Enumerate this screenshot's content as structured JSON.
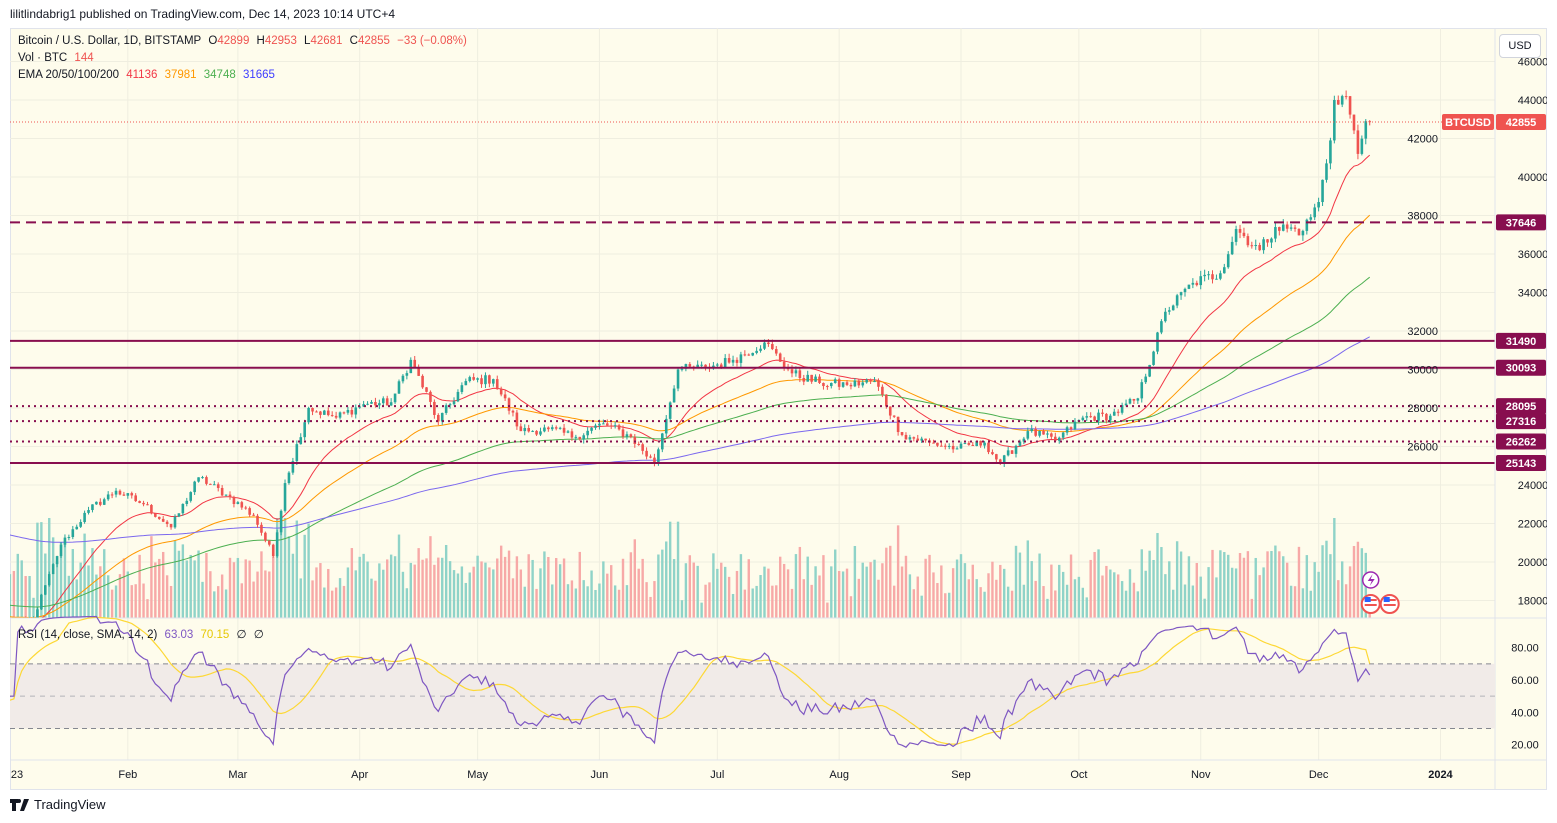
{
  "header": {
    "published": "lilitlindabrig1 published on TradingView.com, Dec 14, 2023 10:14 UTC+4"
  },
  "legend": {
    "symbol": "Bitcoin / U.S. Dollar, 1D, BITSTAMP",
    "o_label": "O",
    "open": "42899",
    "h_label": "H",
    "high": "42953",
    "l_label": "L",
    "low": "42681",
    "c_label": "C",
    "close": "42855",
    "change": "−33 (−0.08%)",
    "vol_label": "Vol · BTC",
    "vol_value": "144",
    "ema_label": "EMA 20/50/100/200",
    "ema20": "41136",
    "ema50": "37981",
    "ema100": "34748",
    "ema200": "31665",
    "rsi_label": "RSI (14, close, SMA, 14, 2)",
    "rsi_value": "63.03",
    "rsi_sma": "70.15",
    "rsi_na1": "∅",
    "rsi_na2": "∅"
  },
  "currency_button": "USD",
  "footer": {
    "brand": "TradingView"
  },
  "colors": {
    "up": "#26a69a",
    "down": "#ef5350",
    "ema20": "#f23645",
    "ema50": "#ff9800",
    "ema100": "#4caf50",
    "ema200": "#7b68ee",
    "level": "#880e4f",
    "rsi": "#7e57c2",
    "rsi_sma": "#fdd835",
    "bg": "#fefcec"
  },
  "chart_data": {
    "type": "candlestick",
    "symbol_tag": "BTCUSD",
    "last_price": 42855,
    "price_ticks": [
      18000,
      20000,
      22000,
      24000,
      26000,
      28000,
      30000,
      32000,
      34000,
      36000,
      38000,
      40000,
      42000,
      44000,
      46000
    ],
    "price_range": [
      17100,
      46500
    ],
    "time_ticks": [
      {
        "label": "23",
        "date": "2023-01-01"
      },
      {
        "label": "Feb",
        "date": "2023-02-01"
      },
      {
        "label": "Mar",
        "date": "2023-03-01"
      },
      {
        "label": "Apr",
        "date": "2023-04-01"
      },
      {
        "label": "May",
        "date": "2023-05-01"
      },
      {
        "label": "Jun",
        "date": "2023-06-01"
      },
      {
        "label": "Jul",
        "date": "2023-07-01"
      },
      {
        "label": "Aug",
        "date": "2023-08-01"
      },
      {
        "label": "Sep",
        "date": "2023-09-01"
      },
      {
        "label": "Oct",
        "date": "2023-10-01"
      },
      {
        "label": "Nov",
        "date": "2023-11-01"
      },
      {
        "label": "Dec",
        "date": "2023-12-01"
      },
      {
        "label": "2024",
        "date": "2024-01-01"
      }
    ],
    "approx_closes": [
      [
        "2023-01-01",
        16600
      ],
      [
        "2023-01-08",
        17100
      ],
      [
        "2023-01-15",
        20900
      ],
      [
        "2023-01-22",
        22700
      ],
      [
        "2023-01-29",
        23700
      ],
      [
        "2023-02-05",
        23000
      ],
      [
        "2023-02-12",
        21800
      ],
      [
        "2023-02-19",
        24400
      ],
      [
        "2023-02-26",
        23500
      ],
      [
        "2023-03-05",
        22400
      ],
      [
        "2023-03-10",
        20300
      ],
      [
        "2023-03-13",
        24100
      ],
      [
        "2023-03-19",
        28000
      ],
      [
        "2023-03-26",
        27500
      ],
      [
        "2023-04-02",
        28200
      ],
      [
        "2023-04-09",
        28300
      ],
      [
        "2023-04-14",
        30500
      ],
      [
        "2023-04-21",
        27300
      ],
      [
        "2023-04-28",
        29400
      ],
      [
        "2023-05-05",
        29500
      ],
      [
        "2023-05-12",
        26800
      ],
      [
        "2023-05-19",
        26900
      ],
      [
        "2023-05-26",
        26500
      ],
      [
        "2023-06-02",
        27200
      ],
      [
        "2023-06-09",
        26500
      ],
      [
        "2023-06-15",
        25100
      ],
      [
        "2023-06-21",
        30000
      ],
      [
        "2023-06-28",
        30100
      ],
      [
        "2023-07-05",
        30500
      ],
      [
        "2023-07-13",
        31400
      ],
      [
        "2023-07-20",
        29800
      ],
      [
        "2023-07-27",
        29300
      ],
      [
        "2023-08-03",
        29200
      ],
      [
        "2023-08-10",
        29400
      ],
      [
        "2023-08-17",
        26600
      ],
      [
        "2023-08-24",
        26200
      ],
      [
        "2023-08-31",
        25900
      ],
      [
        "2023-09-07",
        26200
      ],
      [
        "2023-09-11",
        25100
      ],
      [
        "2023-09-18",
        26800
      ],
      [
        "2023-09-25",
        26300
      ],
      [
        "2023-10-02",
        27500
      ],
      [
        "2023-10-09",
        27600
      ],
      [
        "2023-10-16",
        28500
      ],
      [
        "2023-10-23",
        33000
      ],
      [
        "2023-10-30",
        34500
      ],
      [
        "2023-11-06",
        35000
      ],
      [
        "2023-11-10",
        37300
      ],
      [
        "2023-11-16",
        36200
      ],
      [
        "2023-11-20",
        37400
      ],
      [
        "2023-11-27",
        37200
      ],
      [
        "2023-12-01",
        38700
      ],
      [
        "2023-12-04",
        41900
      ],
      [
        "2023-12-05",
        44000
      ],
      [
        "2023-12-08",
        44200
      ],
      [
        "2023-12-11",
        41200
      ],
      [
        "2023-12-13",
        42900
      ],
      [
        "2023-12-14",
        42855
      ]
    ],
    "levels": [
      {
        "price": 37646,
        "style": "dashed",
        "label": "37646"
      },
      {
        "price": 31490,
        "style": "solid",
        "label": "31490"
      },
      {
        "price": 30093,
        "style": "solid",
        "label": "30093"
      },
      {
        "price": 28095,
        "style": "dotted",
        "label": "28095"
      },
      {
        "price": 27316,
        "style": "dotted",
        "label": "27316"
      },
      {
        "price": 26262,
        "style": "dotted",
        "label": "26262"
      },
      {
        "price": 25143,
        "style": "solid",
        "label": "25143"
      }
    ],
    "rsi": {
      "ticks": [
        "20.00",
        "40.00",
        "60.00",
        "80.00"
      ],
      "upper_band": 70,
      "middle": 50,
      "lower_band": 30,
      "last": 63.03,
      "sma_last": 70.15
    },
    "markers": [
      {
        "icon": "lightning-icon"
      },
      {
        "icon": "us-flag-icon"
      },
      {
        "icon": "us-flag-icon"
      }
    ]
  }
}
